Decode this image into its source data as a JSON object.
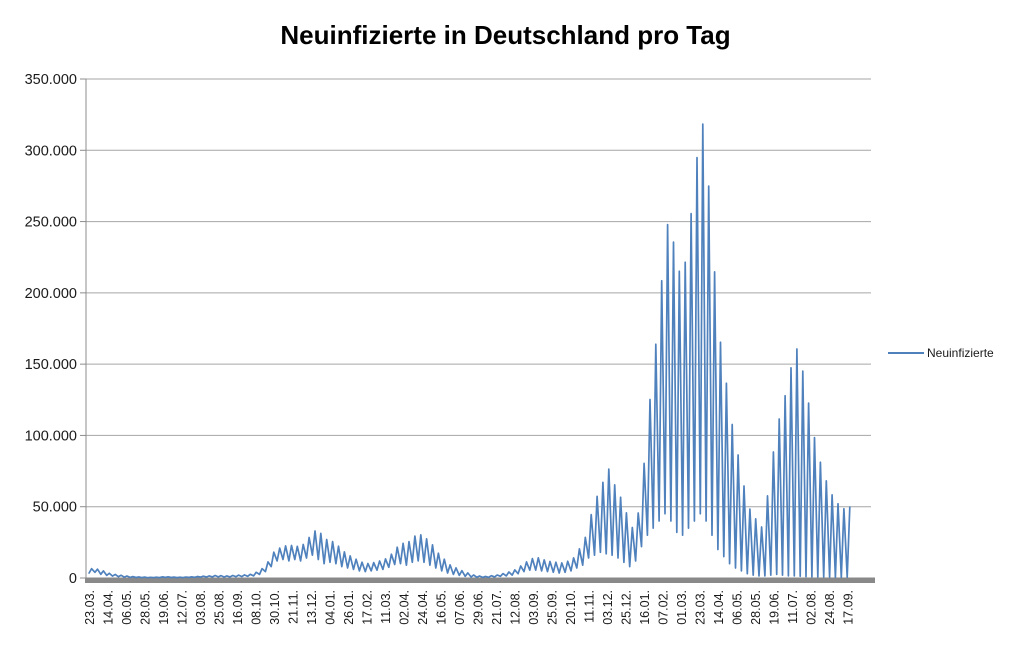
{
  "chart_data": {
    "type": "line",
    "title": "Neuinfizierte in Deutschland pro Tag",
    "legend_position": "right",
    "grid": "horizontal",
    "colors": {
      "series_line": "#4F81BD",
      "gridline": "#A6A6A6",
      "axis_bar": "#898989",
      "axis_line": "#8C8C8C",
      "text": "#1a1a1a",
      "background": "#FFFFFF"
    },
    "ylim": [
      0,
      350000
    ],
    "y_tick_step": 50000,
    "y_tick_labels": [
      "0",
      "50.000",
      "100.000",
      "150.000",
      "200.000",
      "250.000",
      "300.000",
      "350.000"
    ],
    "x_tick_labels": [
      "23.03.",
      "14.04.",
      "06.05.",
      "28.05.",
      "19.06.",
      "12.07.",
      "03.08.",
      "25.08.",
      "16.09.",
      "08.10.",
      "30.10.",
      "21.11.",
      "13.12.",
      "04.01.",
      "26.01.",
      "17.02.",
      "11.03.",
      "02.04.",
      "24.04.",
      "16.05.",
      "07.06.",
      "29.06.",
      "21.07.",
      "12.08.",
      "03.09.",
      "25.09.",
      "20.10.",
      "11.11.",
      "03.12.",
      "25.12.",
      "16.01.",
      "07.02.",
      "01.03.",
      "23.03.",
      "14.04.",
      "06.05.",
      "28.05.",
      "19.06.",
      "11.07.",
      "02.08.",
      "24.08.",
      "17.09."
    ],
    "x_start_date_label": "23.03.",
    "x_end_date_label": "17.09.",
    "series": [
      {
        "name": "Neuinfizierte",
        "color": "#4F81BD",
        "sampling": "weekly_min_max_pairs_daily_reported_cases",
        "weeks_total": 130,
        "weekly_min_max": [
          [
            3500,
            6500
          ],
          [
            4000,
            6200
          ],
          [
            2600,
            5000
          ],
          [
            1800,
            3300
          ],
          [
            1300,
            2500
          ],
          [
            900,
            1900
          ],
          [
            650,
            1400
          ],
          [
            450,
            1000
          ],
          [
            350,
            750
          ],
          [
            300,
            650
          ],
          [
            220,
            520
          ],
          [
            250,
            580
          ],
          [
            300,
            800
          ],
          [
            400,
            820
          ],
          [
            320,
            640
          ],
          [
            260,
            530
          ],
          [
            300,
            620
          ],
          [
            400,
            850
          ],
          [
            500,
            1050
          ],
          [
            600,
            1250
          ],
          [
            700,
            1450
          ],
          [
            800,
            1750
          ],
          [
            800,
            1650
          ],
          [
            700,
            1500
          ],
          [
            800,
            1750
          ],
          [
            900,
            2000
          ],
          [
            1000,
            2150
          ],
          [
            1200,
            2600
          ],
          [
            1500,
            4000
          ],
          [
            2500,
            6600
          ],
          [
            4500,
            11300
          ],
          [
            8000,
            18100
          ],
          [
            12000,
            21000
          ],
          [
            13000,
            22500
          ],
          [
            12000,
            22800
          ],
          [
            13000,
            22200
          ],
          [
            12000,
            23500
          ],
          [
            14000,
            28400
          ],
          [
            16000,
            33000
          ],
          [
            13000,
            31300
          ],
          [
            10000,
            27000
          ],
          [
            11000,
            25500
          ],
          [
            10000,
            22300
          ],
          [
            8000,
            18300
          ],
          [
            7000,
            15500
          ],
          [
            6000,
            13200
          ],
          [
            5000,
            11100
          ],
          [
            4500,
            10200
          ],
          [
            5000,
            10800
          ],
          [
            5500,
            11900
          ],
          [
            6000,
            13400
          ],
          [
            7500,
            16700
          ],
          [
            9500,
            21600
          ],
          [
            10000,
            24300
          ],
          [
            9000,
            25500
          ],
          [
            11000,
            29400
          ],
          [
            12000,
            30200
          ],
          [
            11000,
            27500
          ],
          [
            9000,
            23200
          ],
          [
            7000,
            17400
          ],
          [
            5000,
            13200
          ],
          [
            3500,
            9200
          ],
          [
            2500,
            7100
          ],
          [
            1800,
            5100
          ],
          [
            1200,
            3600
          ],
          [
            700,
            2100
          ],
          [
            500,
            1400
          ],
          [
            400,
            1100
          ],
          [
            500,
            1600
          ],
          [
            800,
            2100
          ],
          [
            1200,
            3100
          ],
          [
            1500,
            4200
          ],
          [
            2000,
            5700
          ],
          [
            3000,
            8400
          ],
          [
            4500,
            11300
          ],
          [
            5500,
            13600
          ],
          [
            5500,
            14200
          ],
          [
            5000,
            12700
          ],
          [
            4500,
            11600
          ],
          [
            4000,
            11100
          ],
          [
            3500,
            10600
          ],
          [
            4000,
            11700
          ],
          [
            5000,
            14100
          ],
          [
            7000,
            20400
          ],
          [
            9000,
            28500
          ],
          [
            14000,
            44500
          ],
          [
            16000,
            57300
          ],
          [
            18000,
            67100
          ],
          [
            17000,
            76400
          ],
          [
            16000,
            65300
          ],
          [
            14000,
            56700
          ],
          [
            11000,
            45700
          ],
          [
            8000,
            35400
          ],
          [
            12000,
            45600
          ],
          [
            22000,
            80400
          ],
          [
            30000,
            125200
          ],
          [
            35000,
            164000
          ],
          [
            40000,
            208500
          ],
          [
            45000,
            247900
          ],
          [
            40000,
            235600
          ],
          [
            32000,
            215200
          ],
          [
            30000,
            221500
          ],
          [
            35000,
            255600
          ],
          [
            40000,
            294900
          ],
          [
            45000,
            318400
          ],
          [
            40000,
            274900
          ],
          [
            30000,
            214700
          ],
          [
            20000,
            165400
          ],
          [
            15000,
            136600
          ],
          [
            10000,
            107700
          ],
          [
            7000,
            86300
          ],
          [
            5000,
            64500
          ],
          [
            3000,
            48300
          ],
          [
            2000,
            41500
          ],
          [
            1500,
            35800
          ],
          [
            1500,
            57600
          ],
          [
            2000,
            88400
          ],
          [
            2500,
            111500
          ],
          [
            2000,
            127900
          ],
          [
            1500,
            147400
          ],
          [
            1500,
            160600
          ],
          [
            1200,
            145100
          ],
          [
            1000,
            122700
          ],
          [
            800,
            98500
          ],
          [
            800,
            81200
          ],
          [
            700,
            68100
          ],
          [
            600,
            58300
          ],
          [
            500,
            52100
          ],
          [
            500,
            48600
          ],
          [
            600,
            49700
          ]
        ]
      }
    ]
  },
  "legend": {
    "label": "Neuinfizierte"
  }
}
